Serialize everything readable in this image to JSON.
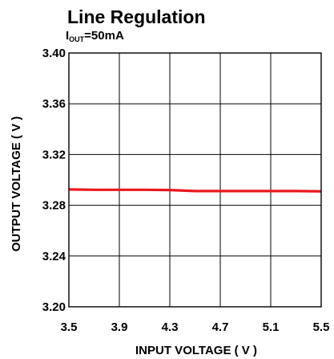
{
  "chart_data": {
    "type": "line",
    "title": "Line Regulation",
    "subtitle": {
      "main": "I",
      "sub": "OUT",
      "rest": "=50mA"
    },
    "xlabel": "INPUT VOLTAGE ( V )",
    "ylabel": "OUTPUT VOLTAGE ( V )",
    "xlim": [
      3.5,
      5.5
    ],
    "ylim": [
      3.2,
      3.4
    ],
    "x_ticks": [
      3.5,
      3.9,
      4.3,
      4.7,
      5.1,
      5.5
    ],
    "x_tick_labels": [
      "3.5",
      "3.9",
      "4.3",
      "4.7",
      "5.1",
      "5.5"
    ],
    "y_ticks": [
      3.2,
      3.24,
      3.28,
      3.32,
      3.36,
      3.4
    ],
    "y_tick_labels": [
      "3.20",
      "3.24",
      "3.28",
      "3.32",
      "3.36",
      "3.40"
    ],
    "x_grid": [
      3.5,
      3.9,
      4.3,
      4.7,
      5.1,
      5.5
    ],
    "y_grid": [
      3.2,
      3.24,
      3.28,
      3.32,
      3.36,
      3.4
    ],
    "grid": true,
    "series": [
      {
        "x": [
          3.5,
          3.7,
          3.9,
          4.1,
          4.3,
          4.5,
          4.7,
          4.9,
          5.1,
          5.3,
          5.5
        ],
        "y": [
          3.2925,
          3.2922,
          3.2922,
          3.2922,
          3.292,
          3.2912,
          3.2912,
          3.2912,
          3.2912,
          3.2912,
          3.291
        ],
        "color": "#e8191e"
      }
    ]
  }
}
